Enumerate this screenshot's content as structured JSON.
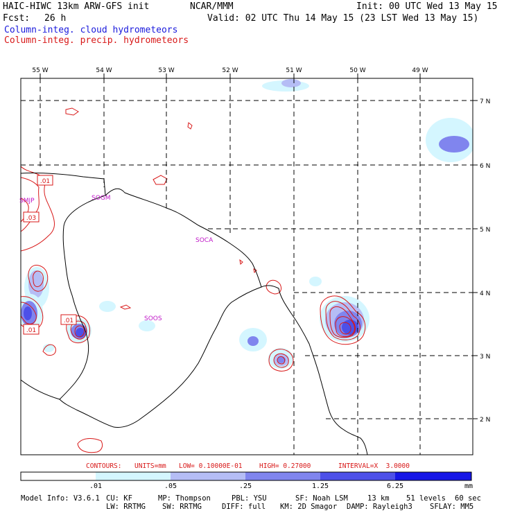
{
  "header": {
    "title": "HAIC-HIWC 13km ARW-GFS init",
    "org": "NCAR/MMM",
    "init": "Init: 00 UTC Wed 13 May 15",
    "fcst_label": "Fcst:",
    "fcst_value": "26 h",
    "valid": "Valid: 02 UTC Thu 14 May 15 (23 LST Wed 13 May 15)",
    "field1": "Column-integ. cloud hydrometeors",
    "field2": "Column-integ. precip. hydrometeors"
  },
  "map": {
    "lon_labels": [
      "55 W",
      "54 W",
      "53 W",
      "52 W",
      "51 W",
      "50 W",
      "49 W"
    ],
    "lat_labels": [
      "7 N",
      "6 N",
      "5 N",
      "4 N",
      "3 N",
      "2 N"
    ],
    "places": [
      "SMJP",
      "SOGM",
      "SOCA",
      "SOOS"
    ],
    "contour_labels": [
      ".01",
      ".03",
      ".01",
      ".01"
    ]
  },
  "contour_info": {
    "contours": "CONTOURS:",
    "units": "UNITS=mm",
    "low": "LOW= 0.10000E-01",
    "high": "HIGH= 0.27000",
    "interval": "INTERVAL=X  3.0000"
  },
  "colorbar": {
    "colors": [
      "#ffffff",
      "#d4f6ff",
      "#b5bdf5",
      "#8085ee",
      "#4d50e8",
      "#1616e6"
    ],
    "labels": [
      ".01",
      ".05",
      ".25",
      "1.25",
      "6.25"
    ],
    "units": "mm"
  },
  "model_info": {
    "line1": [
      "Model Info: V3.6.1",
      "CU: KF",
      "MP: Thompson",
      "PBL: YSU",
      "SF: Noah LSM",
      "13 km",
      "51 levels",
      "60 sec"
    ],
    "line2": [
      "LW: RRTMG",
      "SW: RRTMG",
      "DIFF: full",
      "KM: 2D Smagor",
      "DAMP: Rayleigh3",
      "SFLAY: MM5"
    ]
  }
}
